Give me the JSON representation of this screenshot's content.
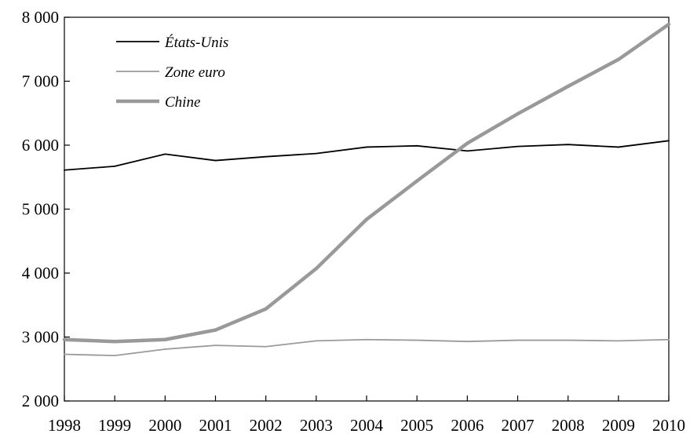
{
  "chart_data": {
    "type": "line",
    "title": "",
    "xlabel": "",
    "ylabel": "",
    "x": [
      1998,
      1999,
      2000,
      2001,
      2002,
      2003,
      2004,
      2005,
      2006,
      2007,
      2008,
      2009,
      2010
    ],
    "x_tick_labels": [
      "1998",
      "1999",
      "2000",
      "2001",
      "2002",
      "2003",
      "2004",
      "2005",
      "2006",
      "2007",
      "2008",
      "2009",
      "2010"
    ],
    "ylim": [
      2000,
      8000
    ],
    "y_ticks": [
      2000,
      3000,
      4000,
      5000,
      6000,
      7000,
      8000
    ],
    "y_tick_labels": [
      "2 000",
      "3 000",
      "4 000",
      "5 000",
      "6 000",
      "7 000",
      "8 000"
    ],
    "grid": false,
    "legend_position": "top-left",
    "series": [
      {
        "name": "États-Unis",
        "color": "#000000",
        "line_style": "thin",
        "values": [
          5610,
          5670,
          5860,
          5760,
          5820,
          5870,
          5970,
          5990,
          5910,
          5980,
          6010,
          5970,
          6070
        ]
      },
      {
        "name": "Zone euro",
        "color": "#9a9a9a",
        "line_style": "thin",
        "values": [
          2730,
          2710,
          2810,
          2870,
          2850,
          2940,
          2960,
          2950,
          2930,
          2950,
          2950,
          2940,
          2960
        ]
      },
      {
        "name": "Chine",
        "color": "#999999",
        "line_style": "thick",
        "values": [
          2960,
          2930,
          2960,
          3110,
          3440,
          4070,
          4840,
          5440,
          6030,
          6490,
          6920,
          7340,
          7890
        ]
      }
    ]
  }
}
